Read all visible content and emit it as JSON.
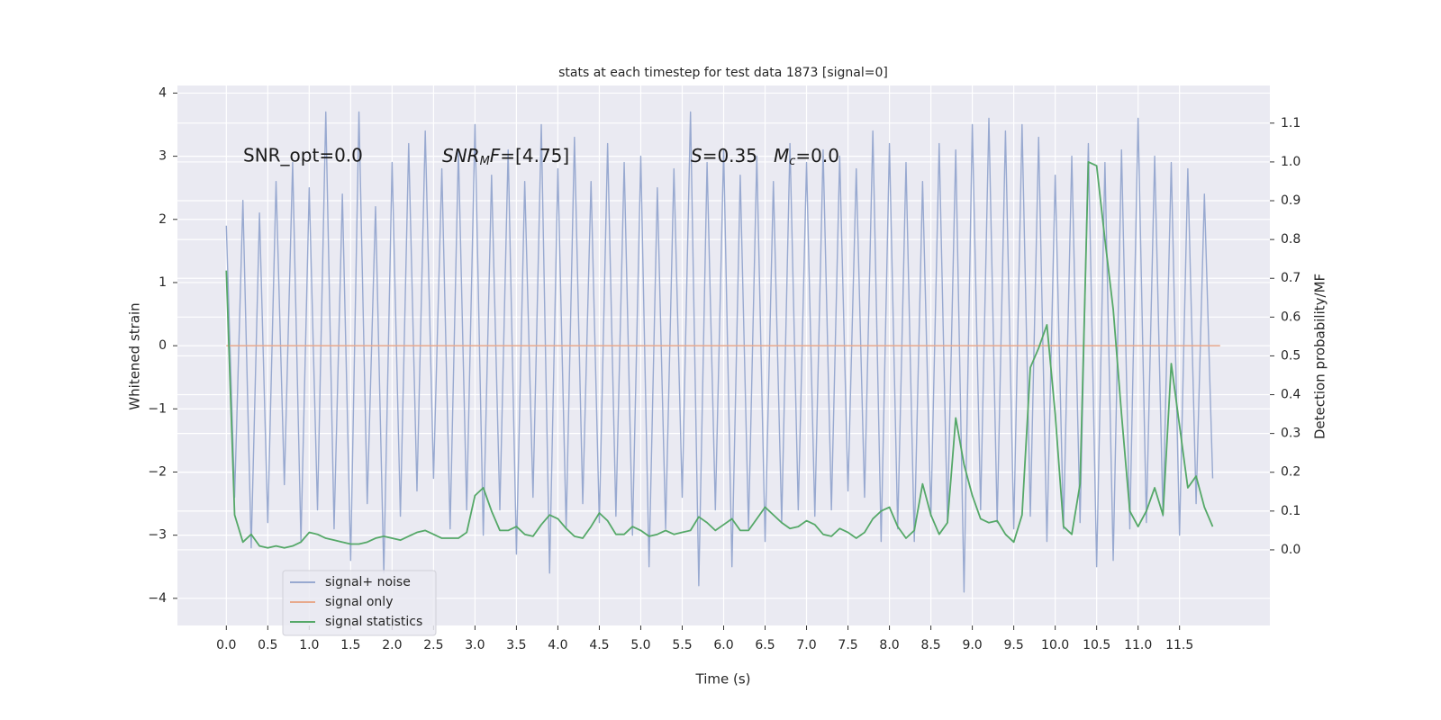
{
  "chart_data": {
    "type": "line",
    "title": "stats at each timestep for test data 1873 [signal=0]",
    "xlabel": "Time (s)",
    "ylabel": "Whitened strain",
    "y2label": "Detection probability/MF",
    "annotations": [
      [
        "SNR_opt=0.0"
      ],
      [
        "SNR",
        "M",
        "F",
        "=[4.75]"
      ],
      [
        "S",
        "=0.35"
      ],
      [
        "M",
        "c",
        "=0.0"
      ]
    ],
    "xlim": [
      -0.59,
      12.59
    ],
    "ylim": [
      -4.43,
      4.12
    ],
    "y2lim": [
      -0.195,
      1.197
    ],
    "xticks": [
      {
        "value": 0,
        "label": "0.0"
      },
      0.5,
      {
        "value": 1,
        "label": "1.0"
      },
      1.5,
      {
        "value": 2,
        "label": "2.0"
      },
      2.5,
      {
        "value": 3,
        "label": "3.0"
      },
      3.5,
      {
        "value": 4,
        "label": "4.0"
      },
      4.5,
      {
        "value": 5,
        "label": "5.0"
      },
      5.5,
      {
        "value": 6,
        "label": "6.0"
      },
      6.5,
      {
        "value": 7,
        "label": "7.0"
      },
      7.5,
      {
        "value": 8,
        "label": "8.0"
      },
      8.5,
      {
        "value": 9,
        "label": "9.0"
      },
      9.5,
      {
        "value": 10,
        "label": "10.0"
      },
      10.5,
      {
        "value": 11,
        "label": "11.0"
      },
      11.5
    ],
    "yticks": [
      {
        "value": -4,
        "label": "−4"
      },
      {
        "value": -3,
        "label": "−3"
      },
      {
        "value": -2,
        "label": "−2"
      },
      {
        "value": -1,
        "label": "−1"
      },
      0,
      1,
      2,
      3,
      4
    ],
    "y2ticks": [
      {
        "value": 0,
        "label": "0.0"
      },
      0.1,
      0.2,
      0.3,
      0.4,
      0.5,
      0.6,
      0.7,
      0.8,
      0.9,
      {
        "value": 1,
        "label": "1.0"
      },
      1.1
    ],
    "grid": true,
    "legend": "lower left",
    "x": [
      0.0,
      0.1,
      0.2,
      0.3,
      0.4,
      0.5,
      0.6,
      0.7,
      0.8,
      0.9,
      1.0,
      1.1,
      1.2,
      1.3,
      1.4,
      1.5,
      1.6,
      1.7,
      1.8,
      1.9,
      2.0,
      2.1,
      2.2,
      2.3,
      2.4,
      2.5,
      2.6,
      2.7,
      2.8,
      2.9,
      3.0,
      3.1,
      3.2,
      3.3,
      3.4,
      3.5,
      3.6,
      3.7,
      3.8,
      3.9,
      4.0,
      4.1,
      4.2,
      4.3,
      4.4,
      4.5,
      4.6,
      4.7,
      4.8,
      4.9,
      5.0,
      5.1,
      5.2,
      5.3,
      5.4,
      5.5,
      5.6,
      5.7,
      5.8,
      5.9,
      6.0,
      6.1,
      6.2,
      6.3,
      6.4,
      6.5,
      6.6,
      6.7,
      6.8,
      6.9,
      7.0,
      7.1,
      7.2,
      7.3,
      7.4,
      7.5,
      7.6,
      7.7,
      7.8,
      7.9,
      8.0,
      8.1,
      8.2,
      8.3,
      8.4,
      8.5,
      8.6,
      8.7,
      8.8,
      8.9,
      9.0,
      9.1,
      9.2,
      9.3,
      9.4,
      9.5,
      9.6,
      9.7,
      9.8,
      9.9,
      10.0,
      10.1,
      10.2,
      10.3,
      10.4,
      10.5,
      10.6,
      10.7,
      10.8,
      10.9,
      11.0,
      11.1,
      11.2,
      11.3,
      11.4,
      11.5,
      11.6,
      11.7,
      11.8,
      11.9
    ],
    "series": [
      {
        "name": "signal+ noise",
        "color": "#98a9d0",
        "values": [
          1.9,
          -2.4,
          2.3,
          -3.2,
          2.1,
          -2.8,
          2.6,
          -2.2,
          2.9,
          -3.1,
          2.5,
          -2.6,
          3.7,
          -2.9,
          2.4,
          -3.4,
          3.7,
          -2.5,
          2.2,
          -3.6,
          2.9,
          -2.7,
          3.2,
          -2.3,
          3.4,
          -2.1,
          2.8,
          -2.9,
          3.1,
          -2.6,
          3.5,
          -3.0,
          2.7,
          -2.6,
          3.1,
          -3.3,
          2.6,
          -2.4,
          3.5,
          -3.6,
          2.8,
          -2.9,
          3.3,
          -2.5,
          2.6,
          -2.8,
          3.2,
          -2.7,
          2.9,
          -3.0,
          3.0,
          -3.5,
          2.5,
          -2.9,
          2.8,
          -2.4,
          3.7,
          -3.8,
          2.9,
          -2.6,
          3.1,
          -3.5,
          2.7,
          -2.9,
          3.0,
          -3.1,
          2.6,
          -2.8,
          3.2,
          -2.6,
          2.9,
          -2.7,
          3.1,
          -2.6,
          3.0,
          -2.3,
          2.8,
          -2.4,
          3.4,
          -3.1,
          3.2,
          -2.9,
          2.9,
          -3.1,
          2.6,
          -2.7,
          3.2,
          -2.8,
          3.1,
          -3.9,
          3.5,
          -2.6,
          3.6,
          -2.8,
          3.4,
          -2.9,
          3.5,
          -2.7,
          3.3,
          -3.1,
          2.7,
          -2.9,
          3.0,
          -2.8,
          3.2,
          -3.5,
          2.9,
          -3.4,
          3.1,
          -2.9,
          3.6,
          -2.8,
          3.0,
          -2.7,
          2.9,
          -3.0,
          2.8,
          -2.5,
          2.4,
          -2.1
        ]
      },
      {
        "name": "signal only",
        "color": "#e8a98c",
        "x": [
          0.0,
          11.99
        ],
        "values": [
          0,
          0
        ]
      },
      {
        "name": "signal statistics",
        "color": "#55a868",
        "axis": "y2",
        "values": [
          0.72,
          0.09,
          0.02,
          0.04,
          0.01,
          0.005,
          0.01,
          0.005,
          0.01,
          0.02,
          0.045,
          0.04,
          0.03,
          0.025,
          0.02,
          0.015,
          0.015,
          0.02,
          0.03,
          0.035,
          0.03,
          0.025,
          0.035,
          0.045,
          0.05,
          0.04,
          0.03,
          0.03,
          0.03,
          0.045,
          0.14,
          0.16,
          0.1,
          0.05,
          0.05,
          0.06,
          0.04,
          0.035,
          0.065,
          0.09,
          0.08,
          0.055,
          0.035,
          0.03,
          0.06,
          0.095,
          0.075,
          0.04,
          0.04,
          0.06,
          0.05,
          0.035,
          0.04,
          0.05,
          0.04,
          0.045,
          0.05,
          0.085,
          0.07,
          0.05,
          0.065,
          0.08,
          0.05,
          0.05,
          0.08,
          0.11,
          0.09,
          0.07,
          0.055,
          0.06,
          0.075,
          0.065,
          0.04,
          0.035,
          0.055,
          0.045,
          0.03,
          0.045,
          0.08,
          0.1,
          0.11,
          0.06,
          0.03,
          0.05,
          0.17,
          0.09,
          0.04,
          0.07,
          0.34,
          0.22,
          0.14,
          0.08,
          0.07,
          0.075,
          0.04,
          0.02,
          0.09,
          0.47,
          0.52,
          0.58,
          0.35,
          0.06,
          0.04,
          0.17,
          1.0,
          0.99,
          0.8,
          0.62,
          0.35,
          0.1,
          0.06,
          0.1,
          0.16,
          0.09,
          0.48,
          0.32,
          0.16,
          0.19,
          0.11,
          0.06
        ]
      }
    ]
  }
}
